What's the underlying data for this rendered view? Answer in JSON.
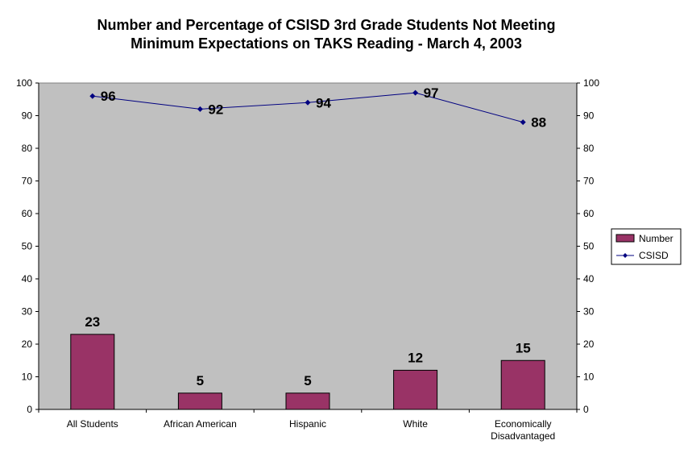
{
  "chart_data": {
    "type": "bar",
    "title_lines": [
      "Number and Percentage of CSISD 3rd Grade Students Not Meeting",
      "Minimum Expectations on TAKS Reading - March 4, 2003"
    ],
    "categories": [
      [
        "All Students"
      ],
      [
        "African American"
      ],
      [
        "Hispanic"
      ],
      [
        "White"
      ],
      [
        "Economically",
        "Disadvantaged"
      ]
    ],
    "series": [
      {
        "name": "Number",
        "type": "bar",
        "axis": "left",
        "values": [
          23,
          5,
          5,
          12,
          15
        ],
        "color": "#993366"
      },
      {
        "name": "CSISD",
        "type": "line",
        "axis": "right",
        "values": [
          96,
          92,
          94,
          97,
          88
        ],
        "color": "#000080"
      }
    ],
    "ylim": [
      0,
      100
    ],
    "y2lim": [
      0,
      100
    ],
    "yticks": [
      0,
      10,
      20,
      30,
      40,
      50,
      60,
      70,
      80,
      90,
      100
    ],
    "y2ticks": [
      0,
      10,
      20,
      30,
      40,
      50,
      60,
      70,
      80,
      90,
      100
    ],
    "plot_background": "#c0c0c0",
    "grid": false,
    "legend_position": "right"
  }
}
